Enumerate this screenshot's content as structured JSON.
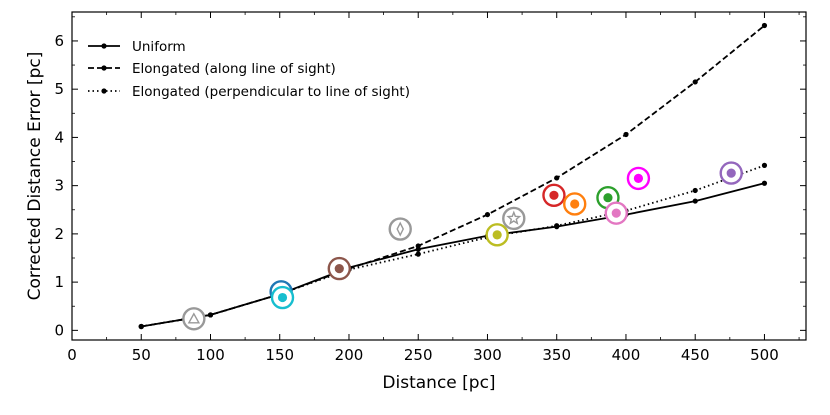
{
  "chart_data": {
    "type": "line",
    "xlabel": "Distance [pc]",
    "ylabel": "Corrected Distance Error [pc]",
    "xlim": [
      0,
      530
    ],
    "ylim": [
      -0.2,
      6.6
    ],
    "xticks": [
      0,
      50,
      100,
      150,
      200,
      250,
      300,
      350,
      400,
      450,
      500
    ],
    "yticks": [
      0,
      1,
      2,
      3,
      4,
      5,
      6
    ],
    "xtick_labels": [
      "0",
      "50",
      "100",
      "150",
      "200",
      "250",
      "300",
      "350",
      "400",
      "450",
      "500"
    ],
    "ytick_labels": [
      "0",
      "1",
      "2",
      "3",
      "4",
      "5",
      "6"
    ],
    "grid": false,
    "legend_position": "top-left",
    "series": [
      {
        "name": "Uniform",
        "style": "solid",
        "x": [
          50,
          100,
          150,
          200,
          250,
          300,
          350,
          400,
          450,
          500
        ],
        "y": [
          0.08,
          0.32,
          0.75,
          1.3,
          1.68,
          1.96,
          2.15,
          2.4,
          2.68,
          3.05
        ]
      },
      {
        "name": "Elongated (along line of sight)",
        "style": "dashed",
        "x": [
          50,
          100,
          150,
          200,
          250,
          300,
          350,
          400,
          450,
          500
        ],
        "y": [
          0.08,
          0.32,
          0.75,
          1.28,
          1.75,
          2.4,
          3.16,
          4.06,
          5.15,
          6.32
        ]
      },
      {
        "name": "Elongated (perpendicular to line of sight)",
        "style": "dotted",
        "x": [
          50,
          100,
          150,
          200,
          250,
          300,
          350,
          400,
          450,
          500
        ],
        "y": [
          0.08,
          0.32,
          0.75,
          1.26,
          1.58,
          1.93,
          2.17,
          2.48,
          2.9,
          3.42
        ]
      }
    ],
    "points": [
      {
        "x": 88,
        "y": 0.24,
        "color": "#999999",
        "marker": "triangle"
      },
      {
        "x": 151,
        "y": 0.8,
        "color": "#1f77b4",
        "marker": "dot"
      },
      {
        "x": 152,
        "y": 0.68,
        "color": "#17becf",
        "marker": "dot"
      },
      {
        "x": 193,
        "y": 1.28,
        "color": "#8c564b",
        "marker": "dot"
      },
      {
        "x": 237,
        "y": 2.1,
        "color": "#999999",
        "marker": "diamond"
      },
      {
        "x": 307,
        "y": 1.98,
        "color": "#bcbd22",
        "marker": "dot"
      },
      {
        "x": 319,
        "y": 2.32,
        "color": "#999999",
        "marker": "star"
      },
      {
        "x": 348,
        "y": 2.8,
        "color": "#d62728",
        "marker": "dot"
      },
      {
        "x": 363,
        "y": 2.62,
        "color": "#ff7f0e",
        "marker": "dot"
      },
      {
        "x": 387,
        "y": 2.75,
        "color": "#2ca02c",
        "marker": "dot"
      },
      {
        "x": 393,
        "y": 2.43,
        "color": "#e377c2",
        "marker": "dot"
      },
      {
        "x": 409,
        "y": 3.15,
        "color": "#ff00ff",
        "marker": "dot"
      },
      {
        "x": 476,
        "y": 3.26,
        "color": "#9467bd",
        "marker": "dot"
      }
    ]
  }
}
